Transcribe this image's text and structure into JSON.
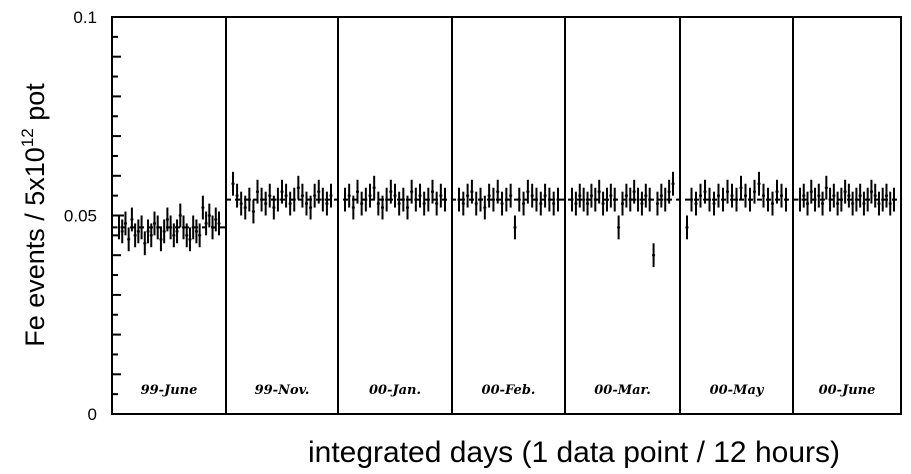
{
  "chart_data": {
    "type": "scatter",
    "title": "",
    "ylabel_main": "Fe events / 5x10",
    "ylabel_exp": "12",
    "ylabel_unit": " pot",
    "xlabel": "integrated days (1 data point / 12 hours)",
    "ylim": [
      0,
      0.1
    ],
    "yticks": [
      {
        "value": 0,
        "label": "0"
      },
      {
        "value": 0.05,
        "label": "0.05"
      },
      {
        "value": 0.1,
        "label": "0.1"
      }
    ],
    "grid": false,
    "reference_lines": [
      {
        "panel_start": 0,
        "panel_end": 1,
        "value": 0.047
      },
      {
        "panel_start": 1,
        "panel_end": 7,
        "value": 0.054
      }
    ],
    "panels": [
      {
        "label": "99-June",
        "points": [
          0.047,
          0.046,
          0.048,
          0.044,
          0.049,
          0.045,
          0.046,
          0.047,
          0.043,
          0.046,
          0.045,
          0.048,
          0.047,
          0.044,
          0.046,
          0.049,
          0.047,
          0.045,
          0.046,
          0.05,
          0.047,
          0.045,
          0.044,
          0.047,
          0.046,
          0.045,
          0.052,
          0.048,
          0.05,
          0.047,
          0.049,
          0.048
        ]
      },
      {
        "label": "99-Nov.",
        "points": [
          0.058,
          0.055,
          0.053,
          0.052,
          0.054,
          0.051,
          0.056,
          0.054,
          0.053,
          0.055,
          0.052,
          0.054,
          0.056,
          0.055,
          0.053,
          0.054,
          0.057,
          0.055,
          0.053,
          0.052,
          0.055,
          0.056,
          0.054,
          0.053,
          0.055
        ]
      },
      {
        "label": "00-Jan.",
        "points": [
          0.054,
          0.055,
          0.052,
          0.056,
          0.053,
          0.054,
          0.055,
          0.057,
          0.053,
          0.052,
          0.054,
          0.056,
          0.055,
          0.053,
          0.054,
          0.052,
          0.056,
          0.054,
          0.055,
          0.053,
          0.054,
          0.056,
          0.053,
          0.055,
          0.054
        ]
      },
      {
        "label": "00-Feb.",
        "points": [
          0.054,
          0.053,
          0.055,
          0.056,
          0.053,
          0.054,
          0.052,
          0.055,
          0.054,
          0.056,
          0.053,
          0.054,
          0.055,
          0.047,
          0.054,
          0.053,
          0.056,
          0.055,
          0.054,
          0.053,
          0.055,
          0.054,
          0.053,
          0.054
        ]
      },
      {
        "label": "00-Mar.",
        "points": [
          0.054,
          0.053,
          0.055,
          0.054,
          0.053,
          0.055,
          0.054,
          0.056,
          0.053,
          0.054,
          0.055,
          0.054,
          0.047,
          0.053,
          0.055,
          0.054,
          0.056,
          0.054,
          0.053,
          0.055,
          0.054,
          0.04,
          0.053,
          0.055,
          0.054,
          0.056,
          0.058
        ]
      },
      {
        "label": "00-May",
        "points": [
          0.047,
          0.054,
          0.053,
          0.055,
          0.056,
          0.054,
          0.053,
          0.055,
          0.054,
          0.056,
          0.055,
          0.054,
          0.057,
          0.055,
          0.054,
          0.056,
          0.058,
          0.055,
          0.054,
          0.053,
          0.056,
          0.055,
          0.054
        ]
      },
      {
        "label": "00-June",
        "points": [
          0.054,
          0.055,
          0.053,
          0.056,
          0.054,
          0.055,
          0.053,
          0.057,
          0.054,
          0.055,
          0.053,
          0.054,
          0.056,
          0.055,
          0.053,
          0.054,
          0.055,
          0.053,
          0.054,
          0.056,
          0.055,
          0.053,
          0.054,
          0.055,
          0.053,
          0.054
        ]
      }
    ]
  }
}
